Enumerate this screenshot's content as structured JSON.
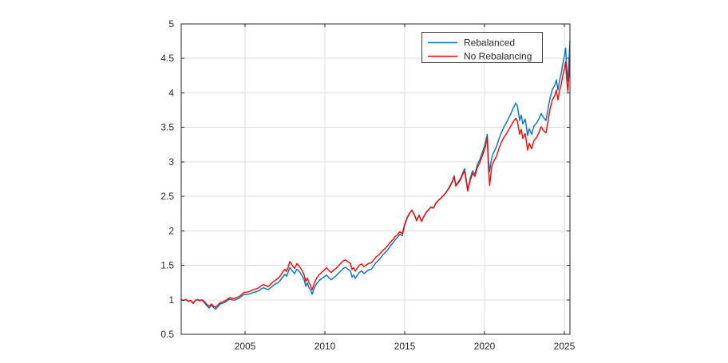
{
  "chart_data": {
    "type": "line",
    "title": "",
    "xlabel": "",
    "ylabel": "",
    "xlim": [
      2001,
      2025.35
    ],
    "ylim": [
      0.5,
      5
    ],
    "xticks": [
      2005,
      2010,
      2015,
      2020,
      2025
    ],
    "yticks": [
      0.5,
      1,
      1.5,
      2,
      2.5,
      3,
      3.5,
      4,
      4.5,
      5
    ],
    "grid": true,
    "legend_position": "inside top-right",
    "axis_color": "#262626",
    "grid_color": "#dcdcdc",
    "x": [
      2001.0,
      2001.15,
      2001.3,
      2001.45,
      2001.6,
      2001.75,
      2001.9,
      2002.0,
      2002.15,
      2002.3,
      2002.45,
      2002.6,
      2002.75,
      2002.9,
      2003.0,
      2003.15,
      2003.3,
      2003.45,
      2003.6,
      2003.75,
      2003.9,
      2004.05,
      2004.2,
      2004.35,
      2004.5,
      2004.65,
      2004.8,
      2004.95,
      2005.1,
      2005.25,
      2005.4,
      2005.55,
      2005.7,
      2005.85,
      2006.0,
      2006.15,
      2006.3,
      2006.45,
      2006.6,
      2006.75,
      2006.9,
      2007.05,
      2007.2,
      2007.35,
      2007.5,
      2007.6,
      2007.7,
      2007.8,
      2007.95,
      2008.1,
      2008.25,
      2008.4,
      2008.55,
      2008.7,
      2008.8,
      2008.9,
      2009.0,
      2009.1,
      2009.2,
      2009.35,
      2009.5,
      2009.65,
      2009.8,
      2009.95,
      2010.1,
      2010.25,
      2010.4,
      2010.55,
      2010.7,
      2010.85,
      2011.0,
      2011.15,
      2011.3,
      2011.45,
      2011.6,
      2011.7,
      2011.8,
      2011.9,
      2012.0,
      2012.15,
      2012.3,
      2012.45,
      2012.6,
      2012.75,
      2012.9,
      2013.05,
      2013.2,
      2013.35,
      2013.5,
      2013.65,
      2013.8,
      2013.95,
      2014.1,
      2014.25,
      2014.4,
      2014.55,
      2014.7,
      2014.85,
      2015.0,
      2015.15,
      2015.3,
      2015.45,
      2015.6,
      2015.75,
      2015.9,
      2016.05,
      2016.2,
      2016.35,
      2016.5,
      2016.65,
      2016.8,
      2016.95,
      2017.1,
      2017.25,
      2017.4,
      2017.55,
      2017.7,
      2017.85,
      2018.0,
      2018.1,
      2018.2,
      2018.35,
      2018.5,
      2018.65,
      2018.75,
      2018.85,
      2018.95,
      2019.1,
      2019.25,
      2019.4,
      2019.55,
      2019.7,
      2019.85,
      2020.0,
      2020.1,
      2020.17,
      2020.25,
      2020.32,
      2020.45,
      2020.6,
      2020.75,
      2020.9,
      2021.05,
      2021.2,
      2021.35,
      2021.5,
      2021.65,
      2021.8,
      2021.95,
      2022.05,
      2022.2,
      2022.3,
      2022.4,
      2022.55,
      2022.7,
      2022.8,
      2022.95,
      2023.1,
      2023.25,
      2023.4,
      2023.55,
      2023.7,
      2023.85,
      2024.0,
      2024.1,
      2024.25,
      2024.4,
      2024.5,
      2024.6,
      2024.7,
      2024.8,
      2024.9,
      2025.0,
      2025.08,
      2025.15,
      2025.22,
      2025.3,
      2025.35
    ],
    "series": [
      {
        "name": "Rebalanced",
        "color": "#0072BD",
        "values": [
          1.0,
          0.99,
          1.005,
          0.975,
          0.985,
          0.945,
          0.99,
          1.0,
          0.985,
          0.995,
          0.96,
          0.915,
          0.88,
          0.92,
          0.895,
          0.862,
          0.9,
          0.94,
          0.95,
          0.965,
          0.99,
          1.01,
          1.0,
          0.995,
          1.01,
          1.025,
          1.055,
          1.08,
          1.075,
          1.085,
          1.095,
          1.11,
          1.115,
          1.13,
          1.155,
          1.175,
          1.16,
          1.145,
          1.175,
          1.205,
          1.23,
          1.245,
          1.28,
          1.33,
          1.37,
          1.34,
          1.4,
          1.47,
          1.42,
          1.38,
          1.445,
          1.41,
          1.355,
          1.29,
          1.195,
          1.245,
          1.18,
          1.145,
          1.08,
          1.18,
          1.24,
          1.28,
          1.31,
          1.33,
          1.36,
          1.32,
          1.29,
          1.32,
          1.345,
          1.385,
          1.42,
          1.455,
          1.47,
          1.44,
          1.42,
          1.33,
          1.36,
          1.31,
          1.345,
          1.395,
          1.42,
          1.38,
          1.41,
          1.435,
          1.44,
          1.49,
          1.54,
          1.57,
          1.61,
          1.655,
          1.69,
          1.73,
          1.78,
          1.82,
          1.87,
          1.905,
          1.95,
          1.93,
          2.08,
          2.18,
          2.25,
          2.3,
          2.24,
          2.15,
          2.23,
          2.14,
          2.21,
          2.27,
          2.31,
          2.345,
          2.33,
          2.4,
          2.44,
          2.47,
          2.51,
          2.545,
          2.6,
          2.66,
          2.73,
          2.8,
          2.66,
          2.71,
          2.76,
          2.85,
          2.9,
          2.75,
          2.6,
          2.76,
          2.87,
          2.82,
          2.96,
          3.03,
          3.13,
          3.23,
          3.33,
          3.4,
          3.0,
          2.86,
          3.06,
          3.15,
          3.22,
          3.33,
          3.42,
          3.5,
          3.56,
          3.63,
          3.7,
          3.78,
          3.85,
          3.82,
          3.6,
          3.68,
          3.55,
          3.62,
          3.38,
          3.48,
          3.4,
          3.52,
          3.56,
          3.62,
          3.7,
          3.64,
          3.6,
          3.8,
          3.92,
          4.05,
          4.11,
          4.19,
          4.04,
          4.18,
          4.28,
          4.42,
          4.53,
          4.65,
          4.35,
          4.17,
          4.52,
          4.76
        ]
      },
      {
        "name": "No Rebalancing",
        "color": "#FF0000",
        "values": [
          1.0,
          0.992,
          1.006,
          0.98,
          0.99,
          0.952,
          0.995,
          1.005,
          0.992,
          1.0,
          0.975,
          0.935,
          0.905,
          0.94,
          0.915,
          0.89,
          0.925,
          0.96,
          0.97,
          0.985,
          1.01,
          1.03,
          1.022,
          1.018,
          1.035,
          1.05,
          1.08,
          1.11,
          1.108,
          1.12,
          1.132,
          1.15,
          1.158,
          1.175,
          1.2,
          1.222,
          1.205,
          1.192,
          1.225,
          1.258,
          1.285,
          1.305,
          1.345,
          1.4,
          1.445,
          1.41,
          1.475,
          1.555,
          1.5,
          1.455,
          1.525,
          1.485,
          1.43,
          1.36,
          1.265,
          1.315,
          1.25,
          1.21,
          1.145,
          1.25,
          1.32,
          1.365,
          1.4,
          1.43,
          1.465,
          1.425,
          1.395,
          1.43,
          1.455,
          1.495,
          1.53,
          1.565,
          1.58,
          1.55,
          1.53,
          1.44,
          1.465,
          1.415,
          1.45,
          1.5,
          1.52,
          1.48,
          1.505,
          1.53,
          1.535,
          1.575,
          1.62,
          1.645,
          1.68,
          1.72,
          1.75,
          1.79,
          1.835,
          1.87,
          1.915,
          1.945,
          1.985,
          1.96,
          2.1,
          2.19,
          2.255,
          2.3,
          2.235,
          2.145,
          2.225,
          2.135,
          2.205,
          2.265,
          2.305,
          2.345,
          2.33,
          2.4,
          2.44,
          2.468,
          2.505,
          2.54,
          2.592,
          2.65,
          2.718,
          2.788,
          2.648,
          2.695,
          2.74,
          2.825,
          2.87,
          2.72,
          2.575,
          2.73,
          2.835,
          2.79,
          2.92,
          2.985,
          3.08,
          3.175,
          3.27,
          3.35,
          2.9,
          2.66,
          2.93,
          3.02,
          3.08,
          3.19,
          3.28,
          3.35,
          3.4,
          3.46,
          3.52,
          3.58,
          3.63,
          3.6,
          3.4,
          3.47,
          3.34,
          3.41,
          3.17,
          3.27,
          3.19,
          3.31,
          3.35,
          3.42,
          3.51,
          3.45,
          3.42,
          3.62,
          3.76,
          3.9,
          3.96,
          4.04,
          3.9,
          4.03,
          4.12,
          4.25,
          4.35,
          4.45,
          4.18,
          4.02,
          4.3,
          4.48
        ]
      }
    ]
  },
  "legend": {
    "entries": [
      "Rebalanced",
      "No Rebalancing"
    ]
  }
}
